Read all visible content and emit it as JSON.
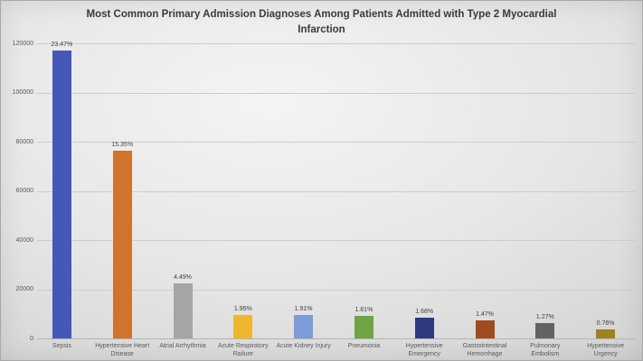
{
  "chart_data": {
    "type": "bar",
    "title": "Most Common Primary Admission Diagnoses Among Patients Admitted with Type 2 Myocardial Infarction",
    "categories": [
      "Sepsis",
      "Hypertensive Heart Disease",
      "Atrial Arrhythmia",
      "Acute Respiratory Railure",
      "Acute Kidney Injury",
      "Pneumonia",
      "Hypertensive Emergency",
      "Gastrointestinal Hemorrhage",
      "Pulmonary Embolism",
      "Hypertensive Urgency"
    ],
    "values": [
      117000,
      76500,
      22400,
      9700,
      9500,
      9000,
      8400,
      7300,
      6300,
      3800
    ],
    "value_labels": [
      "23.47%",
      "15.35%",
      "4.49%",
      "1.95%",
      "1.91%",
      "1.81%",
      "1.68%",
      "1.47%",
      "1.27%",
      "0.76%"
    ],
    "bar_colors": [
      "#4557b7",
      "#d0732f",
      "#a5a5a5",
      "#ecb72f",
      "#7d9bd8",
      "#6fa443",
      "#2d3a7e",
      "#9e4c20",
      "#636363",
      "#9d831f"
    ],
    "ylim": [
      0,
      120000
    ],
    "yticks": [
      0,
      20000,
      40000,
      60000,
      80000,
      100000,
      120000
    ],
    "ytick_labels": [
      "0",
      "20000",
      "40000",
      "60000",
      "80000",
      "100000",
      "120000"
    ],
    "xlabel": "",
    "ylabel": "",
    "grid": true,
    "legend": false,
    "colors": {
      "background": "#d9d9d9",
      "title_text": "#3a3a3a",
      "axis_text": "#595959",
      "value_label_text": "#3f3f3f",
      "gridline": "#cccccc"
    }
  }
}
